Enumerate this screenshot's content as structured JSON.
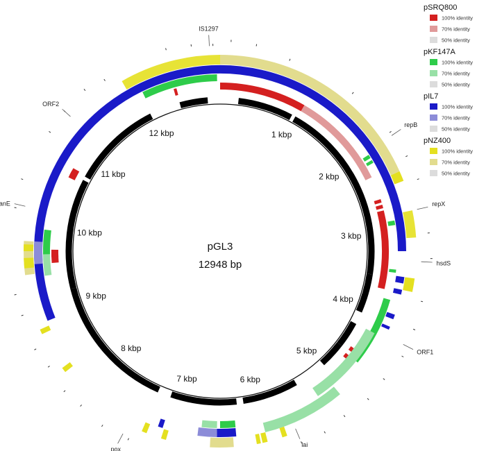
{
  "plasmid": {
    "name": "pGL3",
    "length_label": "12948 bp",
    "length_bp": 12948
  },
  "kbp_labels": [
    "1 kbp",
    "2 kbp",
    "3 kbp",
    "4 kbp",
    "5 kbp",
    "6 kbp",
    "7 kbp",
    "8 kbp",
    "9 kbp",
    "10 kbp",
    "11 kbp",
    "12 kbp"
  ],
  "legend": [
    {
      "title": "pSRQ800",
      "colors": [
        "#d42020",
        "#e09a9a",
        "#dcdcdc"
      ],
      "items": [
        "100% identity",
        "70% identity",
        "50% identity"
      ]
    },
    {
      "title": "pKF147A",
      "colors": [
        "#2ecc4a",
        "#98e0a6",
        "#dcdcdc"
      ],
      "items": [
        "100% identity",
        "70% identity",
        "50% identity"
      ]
    },
    {
      "title": "pIL7",
      "colors": [
        "#1a1ac8",
        "#8c8cd8",
        "#dcdcdc"
      ],
      "items": [
        "100% identity",
        "70% identity",
        "50% identity"
      ]
    },
    {
      "title": "pNZ400",
      "colors": [
        "#e4e020",
        "#e2dc8e",
        "#dcdcdc"
      ],
      "items": [
        "100% identity",
        "70% identity",
        "50% identity"
      ]
    }
  ],
  "gene_labels": [
    "IS1297",
    "repB",
    "repX",
    "hsdS",
    "ORF1",
    "lai",
    "pox",
    "panE",
    "ORF2"
  ]
}
